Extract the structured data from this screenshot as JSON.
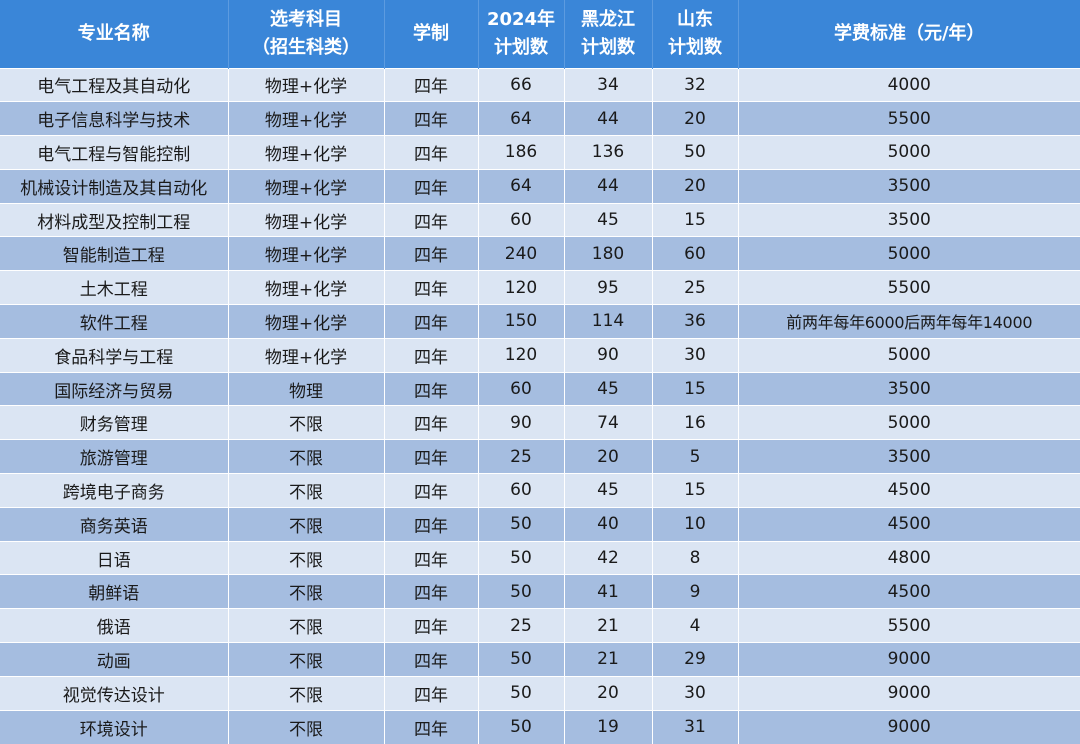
{
  "table": {
    "headers": [
      "专业名称",
      "选考科目\n（招生科类）",
      "学制",
      "2024年\n计划数",
      "黑龙江\n计划数",
      "山东\n计划数",
      "学费标准（元/年）"
    ],
    "rows": [
      [
        "电气工程及其自动化",
        "物理+化学",
        "四年",
        "66",
        "34",
        "32",
        "4000"
      ],
      [
        "电子信息科学与技术",
        "物理+化学",
        "四年",
        "64",
        "44",
        "20",
        "5500"
      ],
      [
        "电气工程与智能控制",
        "物理+化学",
        "四年",
        "186",
        "136",
        "50",
        "5000"
      ],
      [
        "机械设计制造及其自动化",
        "物理+化学",
        "四年",
        "64",
        "44",
        "20",
        "3500"
      ],
      [
        "材料成型及控制工程",
        "物理+化学",
        "四年",
        "60",
        "45",
        "15",
        "3500"
      ],
      [
        "智能制造工程",
        "物理+化学",
        "四年",
        "240",
        "180",
        "60",
        "5000"
      ],
      [
        "土木工程",
        "物理+化学",
        "四年",
        "120",
        "95",
        "25",
        "5500"
      ],
      [
        "软件工程",
        "物理+化学",
        "四年",
        "150",
        "114",
        "36",
        "前两年每年6000后两年每年14000"
      ],
      [
        "食品科学与工程",
        "物理+化学",
        "四年",
        "120",
        "90",
        "30",
        "5000"
      ],
      [
        "国际经济与贸易",
        "物理",
        "四年",
        "60",
        "45",
        "15",
        "3500"
      ],
      [
        "财务管理",
        "不限",
        "四年",
        "90",
        "74",
        "16",
        "5000"
      ],
      [
        "旅游管理",
        "不限",
        "四年",
        "25",
        "20",
        "5",
        "3500"
      ],
      [
        "跨境电子商务",
        "不限",
        "四年",
        "60",
        "45",
        "15",
        "4500"
      ],
      [
        "商务英语",
        "不限",
        "四年",
        "50",
        "40",
        "10",
        "4500"
      ],
      [
        "日语",
        "不限",
        "四年",
        "50",
        "42",
        "8",
        "4800"
      ],
      [
        "朝鲜语",
        "不限",
        "四年",
        "50",
        "41",
        "9",
        "4500"
      ],
      [
        "俄语",
        "不限",
        "四年",
        "25",
        "21",
        "4",
        "5500"
      ],
      [
        "动画",
        "不限",
        "四年",
        "50",
        "21",
        "29",
        "9000"
      ],
      [
        "视觉传达设计",
        "不限",
        "四年",
        "50",
        "20",
        "30",
        "9000"
      ],
      [
        "环境设计",
        "不限",
        "四年",
        "50",
        "19",
        "31",
        "9000"
      ]
    ]
  },
  "colors": {
    "header_bg": "#3a86d8",
    "header_text": "#ffffff",
    "row_light": "#dbe5f3",
    "row_dark": "#a5bde0"
  }
}
